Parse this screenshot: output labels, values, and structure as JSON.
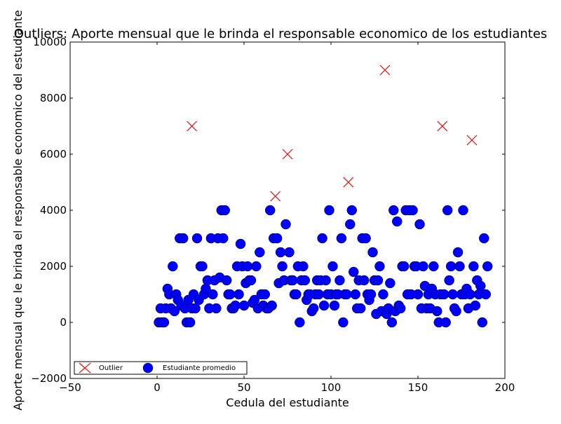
{
  "chart_data": {
    "type": "scatter",
    "title": "Outliers: Aporte mensual que le brinda el responsable economico de los estudiantes",
    "xlabel": "Cedula del estudiante",
    "ylabel": "Aporte mensual que le brinda el responsable economico del estudiante",
    "xlim": [
      -50,
      200
    ],
    "ylim": [
      -2000,
      10000
    ],
    "x_ticks": [
      -50,
      0,
      50,
      100,
      150,
      200
    ],
    "y_ticks": [
      -2000,
      0,
      2000,
      4000,
      6000,
      8000,
      10000
    ],
    "grid": false,
    "legend_position": "lower-left",
    "series": [
      {
        "name": "Outlier",
        "marker": "x",
        "color": "#ff0000",
        "points": [
          [
            20,
            7000
          ],
          [
            68,
            4500
          ],
          [
            75,
            6000
          ],
          [
            110,
            5000
          ],
          [
            131,
            9000
          ],
          [
            164,
            7000
          ],
          [
            181,
            6500
          ]
        ]
      },
      {
        "name": "Estudiante promedio",
        "marker": "circle",
        "color": "#0000ff",
        "points": [
          [
            1,
            0
          ],
          [
            2,
            500
          ],
          [
            3,
            0
          ],
          [
            4,
            0
          ],
          [
            5,
            500
          ],
          [
            6,
            1200
          ],
          [
            7,
            1000
          ],
          [
            8,
            500
          ],
          [
            9,
            2000
          ],
          [
            10,
            400
          ],
          [
            11,
            1000
          ],
          [
            12,
            800
          ],
          [
            13,
            3000
          ],
          [
            14,
            600
          ],
          [
            15,
            3000
          ],
          [
            16,
            500
          ],
          [
            17,
            0
          ],
          [
            18,
            800
          ],
          [
            19,
            0
          ],
          [
            20,
            500
          ],
          [
            21,
            1000
          ],
          [
            22,
            500
          ],
          [
            23,
            3000
          ],
          [
            24,
            800
          ],
          [
            25,
            2000
          ],
          [
            26,
            2000
          ],
          [
            27,
            1000
          ],
          [
            28,
            1200
          ],
          [
            29,
            1500
          ],
          [
            30,
            500
          ],
          [
            31,
            3000
          ],
          [
            32,
            1000
          ],
          [
            33,
            1500
          ],
          [
            34,
            500
          ],
          [
            35,
            3000
          ],
          [
            36,
            1600
          ],
          [
            37,
            4000
          ],
          [
            38,
            3000
          ],
          [
            39,
            4000
          ],
          [
            40,
            1500
          ],
          [
            41,
            1000
          ],
          [
            42,
            1000
          ],
          [
            43,
            500
          ],
          [
            44,
            500
          ],
          [
            45,
            600
          ],
          [
            46,
            2000
          ],
          [
            47,
            1000
          ],
          [
            48,
            2800
          ],
          [
            49,
            2000
          ],
          [
            50,
            600
          ],
          [
            51,
            1400
          ],
          [
            52,
            2000
          ],
          [
            53,
            1500
          ],
          [
            54,
            1500
          ],
          [
            55,
            700
          ],
          [
            56,
            800
          ],
          [
            57,
            2000
          ],
          [
            58,
            500
          ],
          [
            59,
            2500
          ],
          [
            60,
            1000
          ],
          [
            61,
            600
          ],
          [
            62,
            1000
          ],
          [
            63,
            500
          ],
          [
            64,
            500
          ],
          [
            65,
            4000
          ],
          [
            66,
            600
          ],
          [
            67,
            3000
          ],
          [
            69,
            3000
          ],
          [
            70,
            1400
          ],
          [
            71,
            2500
          ],
          [
            72,
            2000
          ],
          [
            73,
            1500
          ],
          [
            74,
            3500
          ],
          [
            76,
            2500
          ],
          [
            77,
            1500
          ],
          [
            78,
            1500
          ],
          [
            79,
            1000
          ],
          [
            80,
            1000
          ],
          [
            81,
            2000
          ],
          [
            82,
            0
          ],
          [
            83,
            1500
          ],
          [
            84,
            2000
          ],
          [
            85,
            1500
          ],
          [
            86,
            800
          ],
          [
            87,
            1000
          ],
          [
            88,
            1000
          ],
          [
            89,
            400
          ],
          [
            90,
            500
          ],
          [
            91,
            1000
          ],
          [
            92,
            1500
          ],
          [
            93,
            1000
          ],
          [
            94,
            1500
          ],
          [
            95,
            3000
          ],
          [
            96,
            600
          ],
          [
            97,
            1500
          ],
          [
            98,
            1000
          ],
          [
            99,
            4000
          ],
          [
            100,
            1000
          ],
          [
            101,
            2000
          ],
          [
            102,
            600
          ],
          [
            103,
            1000
          ],
          [
            104,
            1000
          ],
          [
            105,
            1500
          ],
          [
            106,
            3000
          ],
          [
            107,
            0
          ],
          [
            108,
            1000
          ],
          [
            109,
            1000
          ],
          [
            111,
            3500
          ],
          [
            112,
            4000
          ],
          [
            113,
            1800
          ],
          [
            114,
            1000
          ],
          [
            115,
            500
          ],
          [
            116,
            1500
          ],
          [
            117,
            500
          ],
          [
            118,
            3000
          ],
          [
            119,
            1500
          ],
          [
            120,
            3000
          ],
          [
            121,
            1000
          ],
          [
            122,
            800
          ],
          [
            123,
            1000
          ],
          [
            124,
            2500
          ],
          [
            125,
            1500
          ],
          [
            126,
            300
          ],
          [
            127,
            1500
          ],
          [
            128,
            2000
          ],
          [
            129,
            400
          ],
          [
            130,
            1000
          ],
          [
            132,
            300
          ],
          [
            133,
            500
          ],
          [
            134,
            1400
          ],
          [
            135,
            0
          ],
          [
            136,
            4000
          ],
          [
            137,
            400
          ],
          [
            138,
            3600
          ],
          [
            139,
            600
          ],
          [
            140,
            500
          ],
          [
            141,
            2000
          ],
          [
            142,
            2000
          ],
          [
            143,
            4000
          ],
          [
            144,
            1000
          ],
          [
            145,
            4000
          ],
          [
            146,
            1000
          ],
          [
            147,
            4000
          ],
          [
            148,
            2000
          ],
          [
            149,
            2000
          ],
          [
            150,
            1000
          ],
          [
            151,
            3500
          ],
          [
            152,
            500
          ],
          [
            153,
            2000
          ],
          [
            154,
            1300
          ],
          [
            155,
            500
          ],
          [
            156,
            1000
          ],
          [
            157,
            500
          ],
          [
            158,
            1200
          ],
          [
            159,
            2000
          ],
          [
            160,
            1000
          ],
          [
            161,
            400
          ],
          [
            162,
            0
          ],
          [
            163,
            1000
          ],
          [
            165,
            1000
          ],
          [
            166,
            0
          ],
          [
            167,
            4000
          ],
          [
            168,
            1500
          ],
          [
            169,
            2000
          ],
          [
            170,
            1000
          ],
          [
            171,
            500
          ],
          [
            172,
            400
          ],
          [
            173,
            2500
          ],
          [
            174,
            2000
          ],
          [
            175,
            1000
          ],
          [
            176,
            4000
          ],
          [
            177,
            1000
          ],
          [
            178,
            1200
          ],
          [
            179,
            500
          ],
          [
            180,
            1000
          ],
          [
            182,
            2000
          ],
          [
            183,
            600
          ],
          [
            184,
            1500
          ],
          [
            185,
            1000
          ],
          [
            186,
            1300
          ],
          [
            187,
            0
          ],
          [
            188,
            3000
          ],
          [
            189,
            1000
          ],
          [
            190,
            2000
          ]
        ]
      }
    ]
  }
}
